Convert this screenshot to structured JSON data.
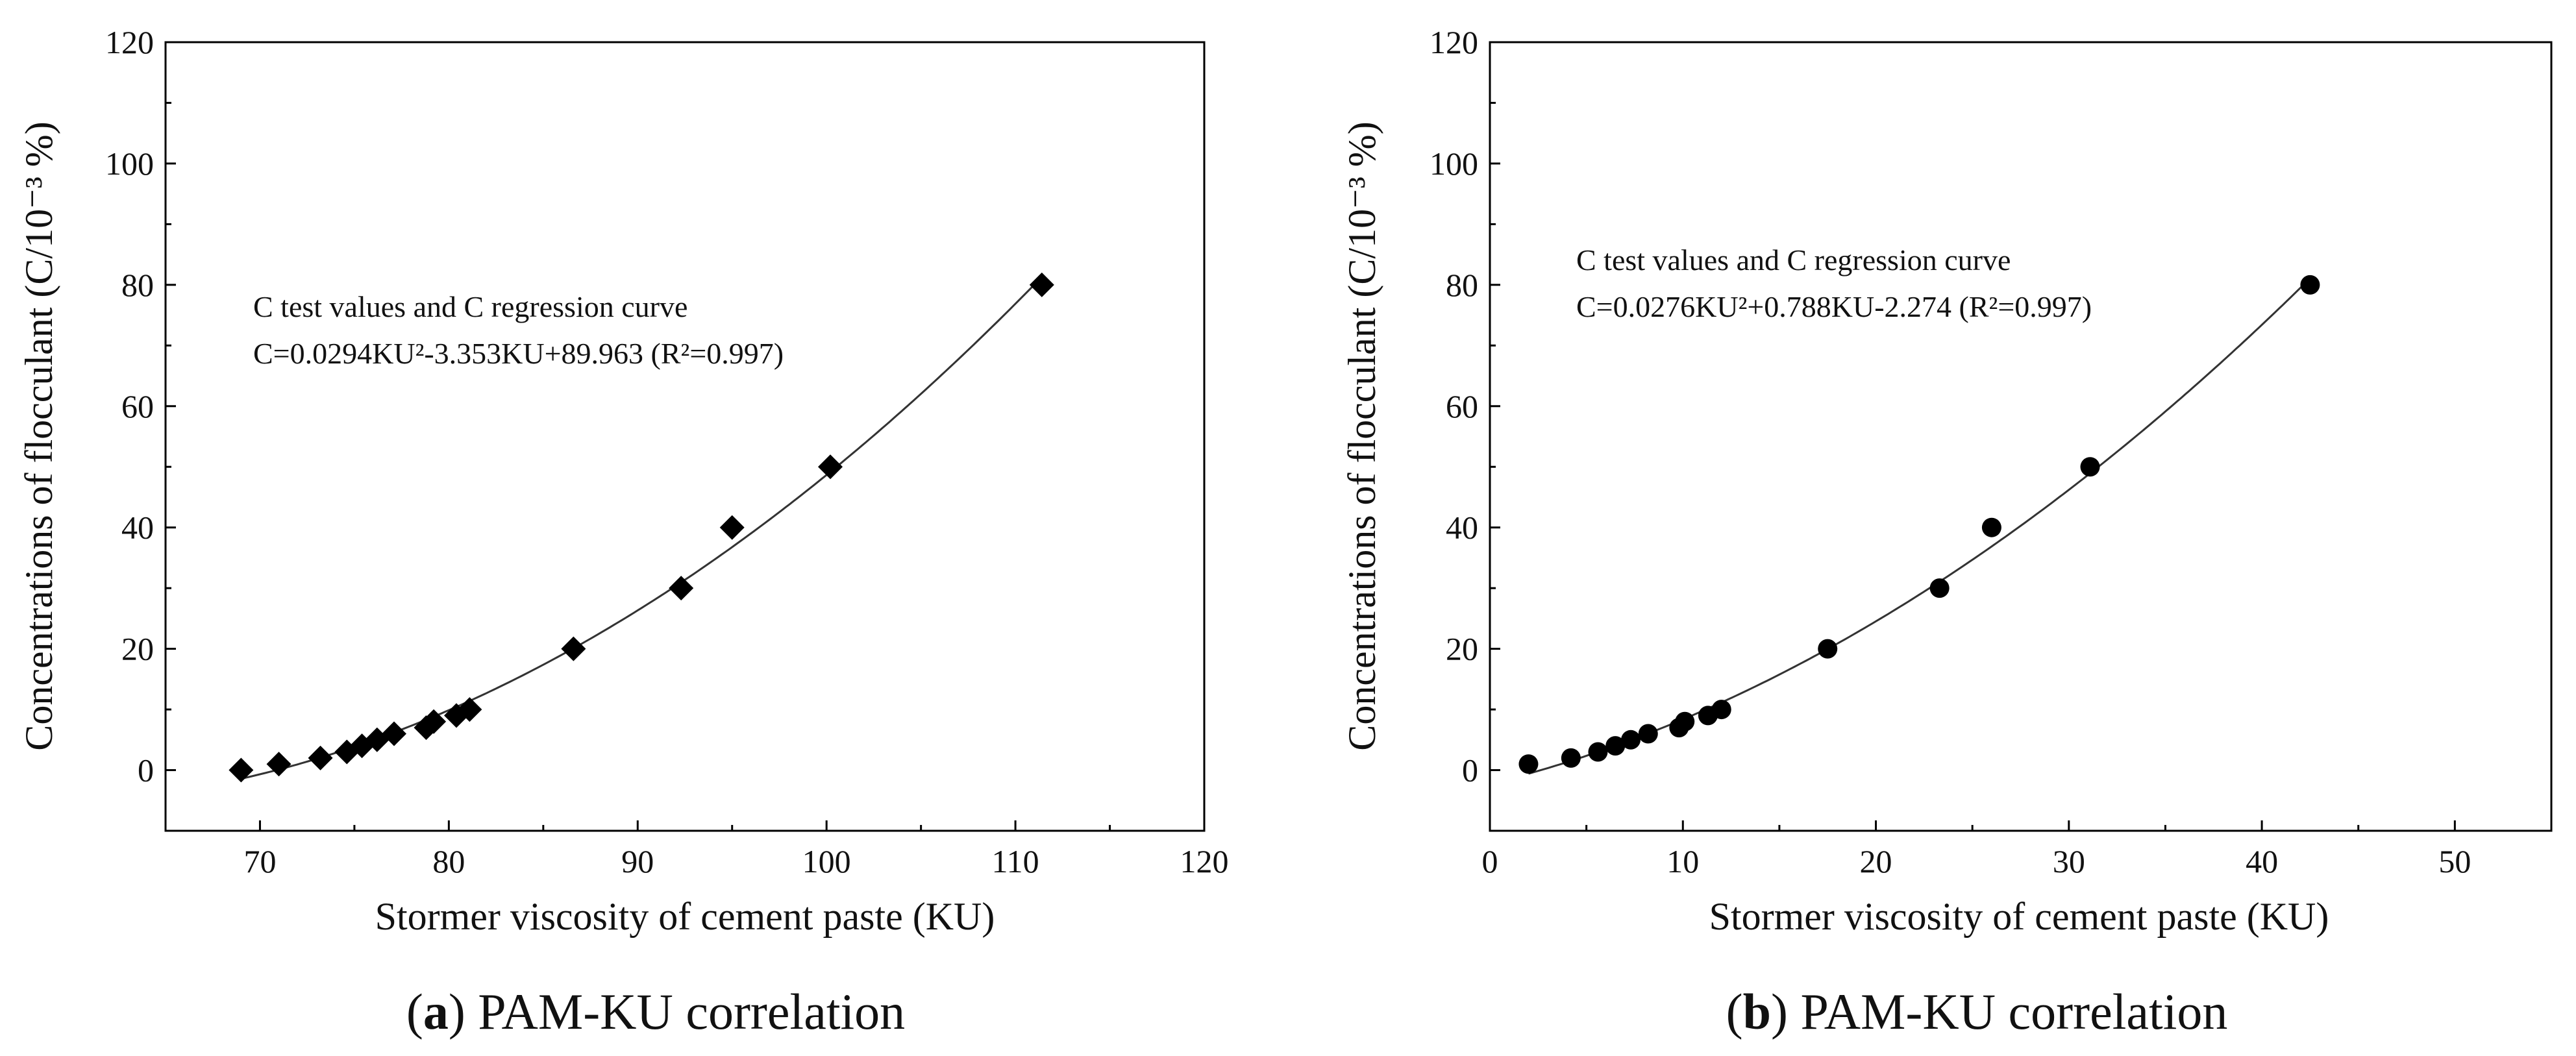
{
  "chart_data": [
    {
      "type": "scatter",
      "marker": "diamond",
      "title": "",
      "xlabel": "Stormer viscosity of cement paste (KU)",
      "ylabel": "Concentrations of flocculant (C/10⁻³ %)",
      "xlim": [
        65,
        120
      ],
      "ylim": [
        -10,
        120
      ],
      "xticks": [
        70,
        80,
        90,
        100,
        110,
        120
      ],
      "yticks": [
        0,
        20,
        40,
        60,
        80,
        100,
        120
      ],
      "legend_text": "C test values and C regression curve",
      "equation_text": "C=0.0294KU²-3.353KU+89.963 (R²=0.997)",
      "regression": {
        "a": 0.0294,
        "b": -3.353,
        "c": 89.963,
        "r2": 0.997
      },
      "caption_letter": "a",
      "caption_text": "PAM-KU correlation",
      "series": [
        {
          "name": "C test values",
          "x": [
            69.0,
            71.0,
            73.2,
            74.6,
            75.4,
            76.2,
            77.1,
            78.8,
            79.2,
            80.4,
            81.1,
            86.6,
            92.3,
            95.0,
            100.2,
            111.4
          ],
          "y": [
            0,
            1,
            2,
            3,
            4,
            5,
            6,
            7,
            8,
            9,
            10,
            20,
            30,
            40,
            50,
            80
          ]
        }
      ]
    },
    {
      "type": "scatter",
      "marker": "circle",
      "title": "",
      "xlabel": "Stormer viscosity of cement paste (KU)",
      "ylabel": "Concentrations of flocculant (C/10⁻³ %)",
      "xlim": [
        0,
        55
      ],
      "ylim": [
        -10,
        120
      ],
      "xticks": [
        0,
        10,
        20,
        30,
        40,
        50
      ],
      "yticks": [
        0,
        20,
        40,
        60,
        80,
        100,
        120
      ],
      "legend_text": "C test values and C regression curve",
      "equation_text": "C=0.0276KU²+0.788KU-2.274 (R²=0.997)",
      "regression": {
        "a": 0.0276,
        "b": 0.788,
        "c": -2.274,
        "r2": 0.997
      },
      "caption_letter": "b",
      "caption_text": "PAM-KU correlation",
      "series": [
        {
          "name": "C test values",
          "x": [
            2.0,
            4.2,
            5.6,
            6.5,
            7.3,
            8.2,
            9.8,
            10.1,
            11.3,
            12.0,
            17.5,
            23.3,
            26.0,
            31.1,
            42.5
          ],
          "y": [
            1,
            2,
            3,
            4,
            5,
            6,
            7,
            8,
            9,
            10,
            20,
            30,
            40,
            50,
            80
          ]
        }
      ]
    }
  ]
}
